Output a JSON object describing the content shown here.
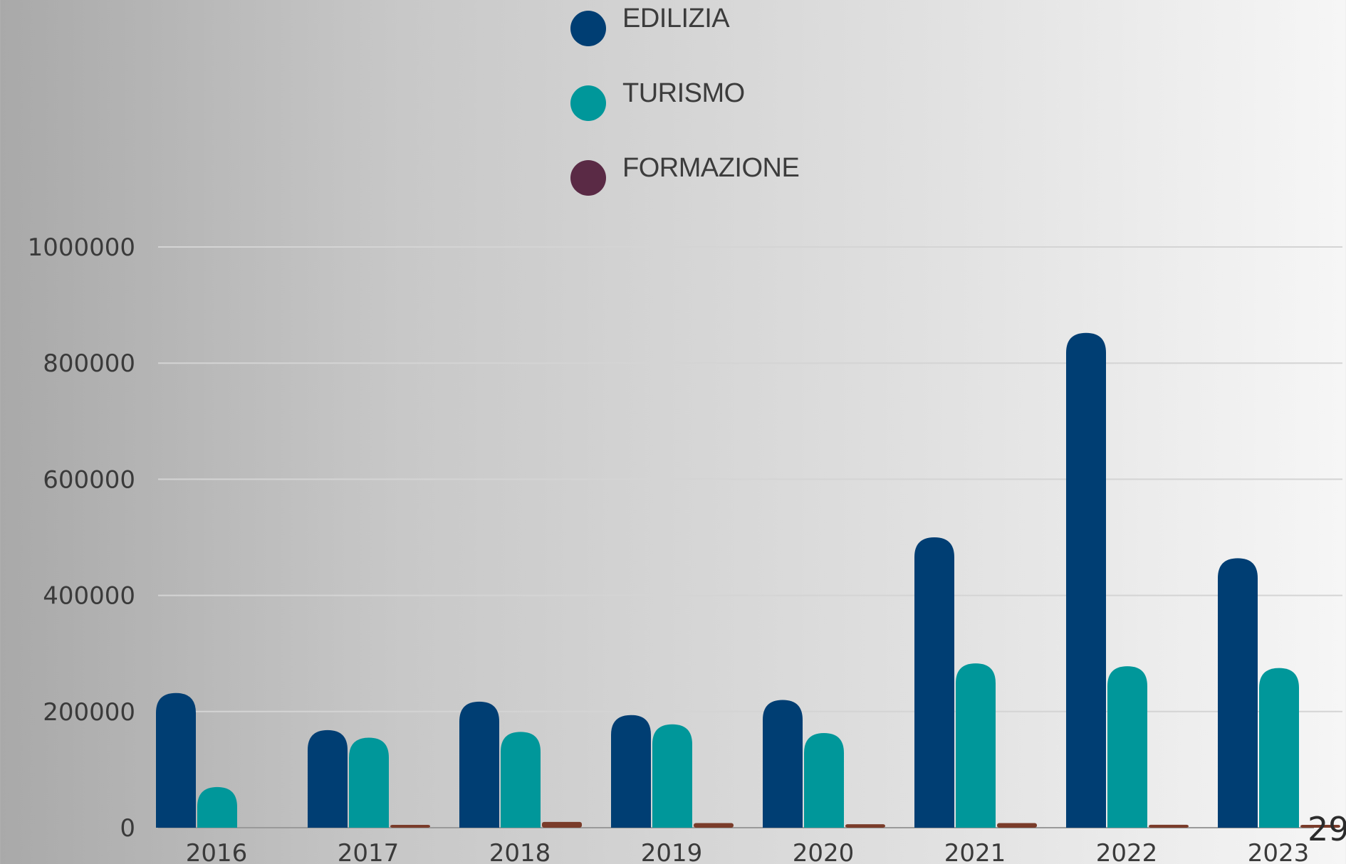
{
  "chart_data": {
    "type": "bar",
    "categories": [
      "2016",
      "2017",
      "2018",
      "2019",
      "2020",
      "2021",
      "2022",
      "2023"
    ],
    "series": [
      {
        "name": "EDILIZIA",
        "color": "#003e73",
        "values": [
          232000,
          168000,
          217000,
          194000,
          220000,
          500000,
          852000,
          464000
        ]
      },
      {
        "name": "TURISMO",
        "color": "#00979a",
        "values": [
          70000,
          155000,
          165000,
          178000,
          163000,
          283000,
          278000,
          275000
        ]
      },
      {
        "name": "FORMAZIONE",
        "color": "#5a2a45",
        "values": [
          0,
          3000,
          10000,
          8000,
          6000,
          8000,
          5000,
          3000
        ]
      }
    ],
    "yticks": [
      0,
      200000,
      400000,
      600000,
      800000,
      1000000
    ],
    "ylim": [
      0,
      1000000
    ],
    "grid": true,
    "legend_position": "top-center"
  },
  "page_number": "29"
}
